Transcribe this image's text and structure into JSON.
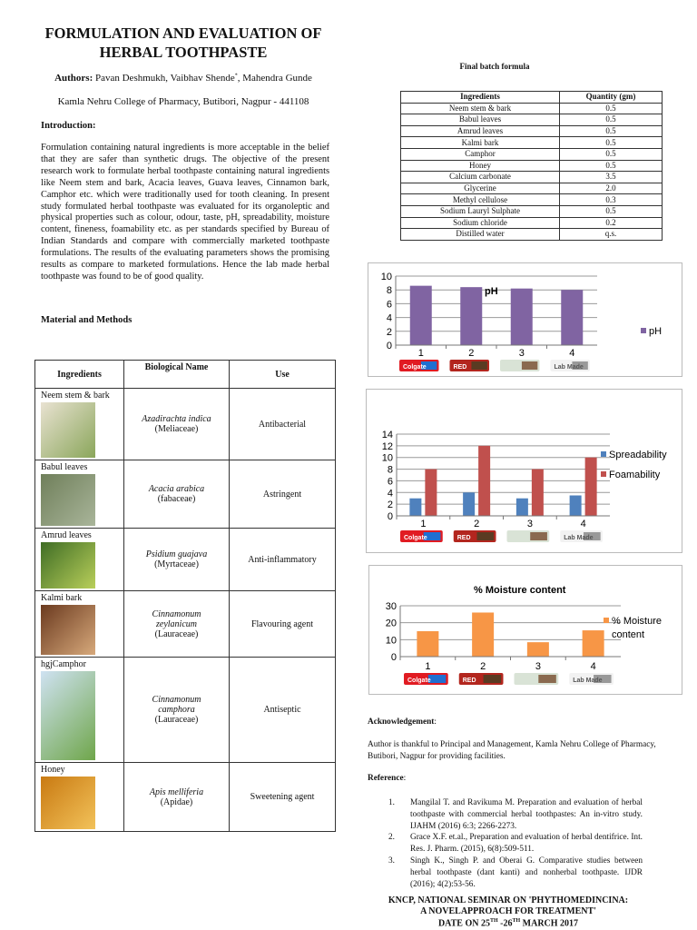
{
  "header": {
    "title": "FORMULATION AND EVALUATION OF HERBAL TOOTHPASTE",
    "authors_label": "Authors:",
    "authors": "Pavan Deshmukh, Vaibhav Shende",
    "authors_mark": "*",
    "authors_rest": ", Mahendra Gunde",
    "affiliation": "Kamla Nehru College of Pharmacy, Butibori, Nagpur - 441108"
  },
  "introduction": {
    "heading": "Introduction:",
    "text": "Formulation containing natural ingredients is more acceptable in the belief that they are safer than synthetic drugs. The objective of the present research work to formulate herbal toothpaste containing natural ingredients like Neem stem and bark, Acacia leaves, Guava leaves, Cinnamon bark, Camphor etc. which were traditionally used for tooth cleaning. In present study formulated herbal toothpaste was evaluated for its organoleptic and physical properties such as colour, odour, taste, pH, spreadability, moisture content, fineness, foamability etc. as per standards specified by Bureau of Indian Standards and compare with commercially marketed toothpaste formulations. The results of the evaluating parameters shows the promising results as compare to marketed formulations. Hence the lab made herbal toothpaste was found to be of good quality."
  },
  "methods": {
    "heading": "Material and Methods",
    "columns": [
      "Ingredients",
      "Biological Name",
      "Use"
    ],
    "rows": [
      {
        "ingredient": "Neem stem & bark",
        "bio": "Azadirachta indica",
        "family": "(Meliaceae)",
        "use": "Antibacterial",
        "colors": [
          "#e9e2d2",
          "#8aa65a"
        ]
      },
      {
        "ingredient": "Babul leaves",
        "bio": "Acacia arabica",
        "family": "(fabaceae)",
        "use": "Astringent",
        "colors": [
          "#6f7f5a",
          "#a9b59a"
        ]
      },
      {
        "ingredient": "Amrud leaves",
        "bio": "Psidium guajava",
        "family": "(Myrtaceae)",
        "use": "Anti-inflammatory",
        "colors": [
          "#3f6d25",
          "#b9cf5a"
        ]
      },
      {
        "ingredient": "Kalmi bark",
        "bio": "Cinnamonum zeylanicum",
        "family": "(Lauraceae)",
        "use": "Flavouring agent",
        "colors": [
          "#6b3a1f",
          "#d7a97b"
        ]
      },
      {
        "ingredient": "hgjCamphor",
        "bio": "Cinnamonum camphora",
        "family": "(Lauraceae)",
        "use": "Antiseptic",
        "colors": [
          "#cfe2f2",
          "#6fa64a"
        ]
      },
      {
        "ingredient": "Honey",
        "bio": "Apis melliferia",
        "family": "(Apidae)",
        "use": "Sweetening agent",
        "colors": [
          "#c97a12",
          "#f2c25a"
        ]
      }
    ]
  },
  "batch_formula": {
    "heading": "Final batch formula",
    "columns": [
      "Ingredients",
      "Quantity (gm)"
    ],
    "rows": [
      [
        "Neem stem & bark",
        "0.5"
      ],
      [
        "Babul leaves",
        "0.5"
      ],
      [
        "Amrud leaves",
        "0.5"
      ],
      [
        "Kalmi bark",
        "0.5"
      ],
      [
        "Camphor",
        "0.5"
      ],
      [
        "Honey",
        "0.5"
      ],
      [
        "Calcium carbonate",
        "3.5"
      ],
      [
        "Glycerine",
        "2.0"
      ],
      [
        "Methyl cellulose",
        "0.3"
      ],
      [
        "Sodium Lauryl Sulphate",
        "0.5"
      ],
      [
        "Sodium chloride",
        "0.2"
      ],
      [
        "Distilled water",
        "q.s."
      ]
    ]
  },
  "chart_data": [
    {
      "type": "bar",
      "title": "pH",
      "categories": [
        "1",
        "2",
        "3",
        "4"
      ],
      "ylim": [
        0,
        10
      ],
      "yticks": [
        0,
        2,
        4,
        6,
        8,
        10
      ],
      "grid": true,
      "legend": "right",
      "series": [
        {
          "name": "pH",
          "color": "#8064a2",
          "values": [
            8.6,
            8.4,
            8.2,
            8.0
          ]
        }
      ],
      "image_labels": [
        "Colgate",
        "RED",
        "",
        "Lab Made"
      ]
    },
    {
      "type": "bar",
      "title": "",
      "categories": [
        "1",
        "2",
        "3",
        "4"
      ],
      "ylim": [
        0,
        14
      ],
      "yticks": [
        0,
        2,
        4,
        6,
        8,
        10,
        12,
        14
      ],
      "grid": true,
      "legend": "right",
      "series": [
        {
          "name": "Spreadability",
          "color": "#4f81bd",
          "values": [
            3,
            4,
            3,
            3.5
          ]
        },
        {
          "name": "Foamability",
          "color": "#c0504d",
          "values": [
            8,
            12,
            8,
            10
          ]
        }
      ],
      "image_labels": [
        "Colgate",
        "RED",
        "",
        "Lab Made"
      ]
    },
    {
      "type": "bar",
      "title": "% Moisture content",
      "categories": [
        "1",
        "2",
        "3",
        "4"
      ],
      "ylim": [
        0,
        30
      ],
      "yticks": [
        0,
        10,
        20,
        30
      ],
      "grid": true,
      "legend": "right",
      "series": [
        {
          "name": "% Moisture content",
          "color": "#f79646",
          "values": [
            15,
            26,
            8.5,
            15.5
          ]
        }
      ],
      "image_labels": [
        "Colgate",
        "RED",
        "",
        "Lab Made"
      ]
    }
  ],
  "acknowledgement": {
    "heading": "Acknowledgement",
    "colon": ":",
    "text": "Author is thankful to Principal and Management, Kamla Nehru College of Pharmacy, Butibori, Nagpur for providing facilities."
  },
  "references": {
    "heading": "Reference",
    "colon": ":",
    "items": [
      {
        "num": "1.",
        "text": "Mangilal T. and Ravikuma M. Preparation and evaluation of herbal toothpaste with commercial herbal toothpastes: An in-vitro study. IJAHM (2016) 6:3; 2266-2273."
      },
      {
        "num": "2.",
        "text": "Grace X.F. et.al., Preparation and evaluation of herbal dentifrice. Int. Res. J. Pharm. (2015), 6(8):509-511."
      },
      {
        "num": "3.",
        "text": "Singh K., Singh P. and Oberai G. Comparative studies between herbal toothpaste (dant kanti) and nonherbal toothpaste. IJDR (2016); 4(2):53-56."
      }
    ]
  },
  "footer": {
    "line1": "KNCP, NATIONAL SEMINAR ON 'PHYTHOMEDINCINA:",
    "line2": "A NOVELAPPROACH FOR TREATMENT'",
    "line3_a": "DATE ON 25",
    "sup1": "TH",
    "line3_b": " -26",
    "sup2": "TH",
    "line3_c": " MARCH 2017"
  }
}
